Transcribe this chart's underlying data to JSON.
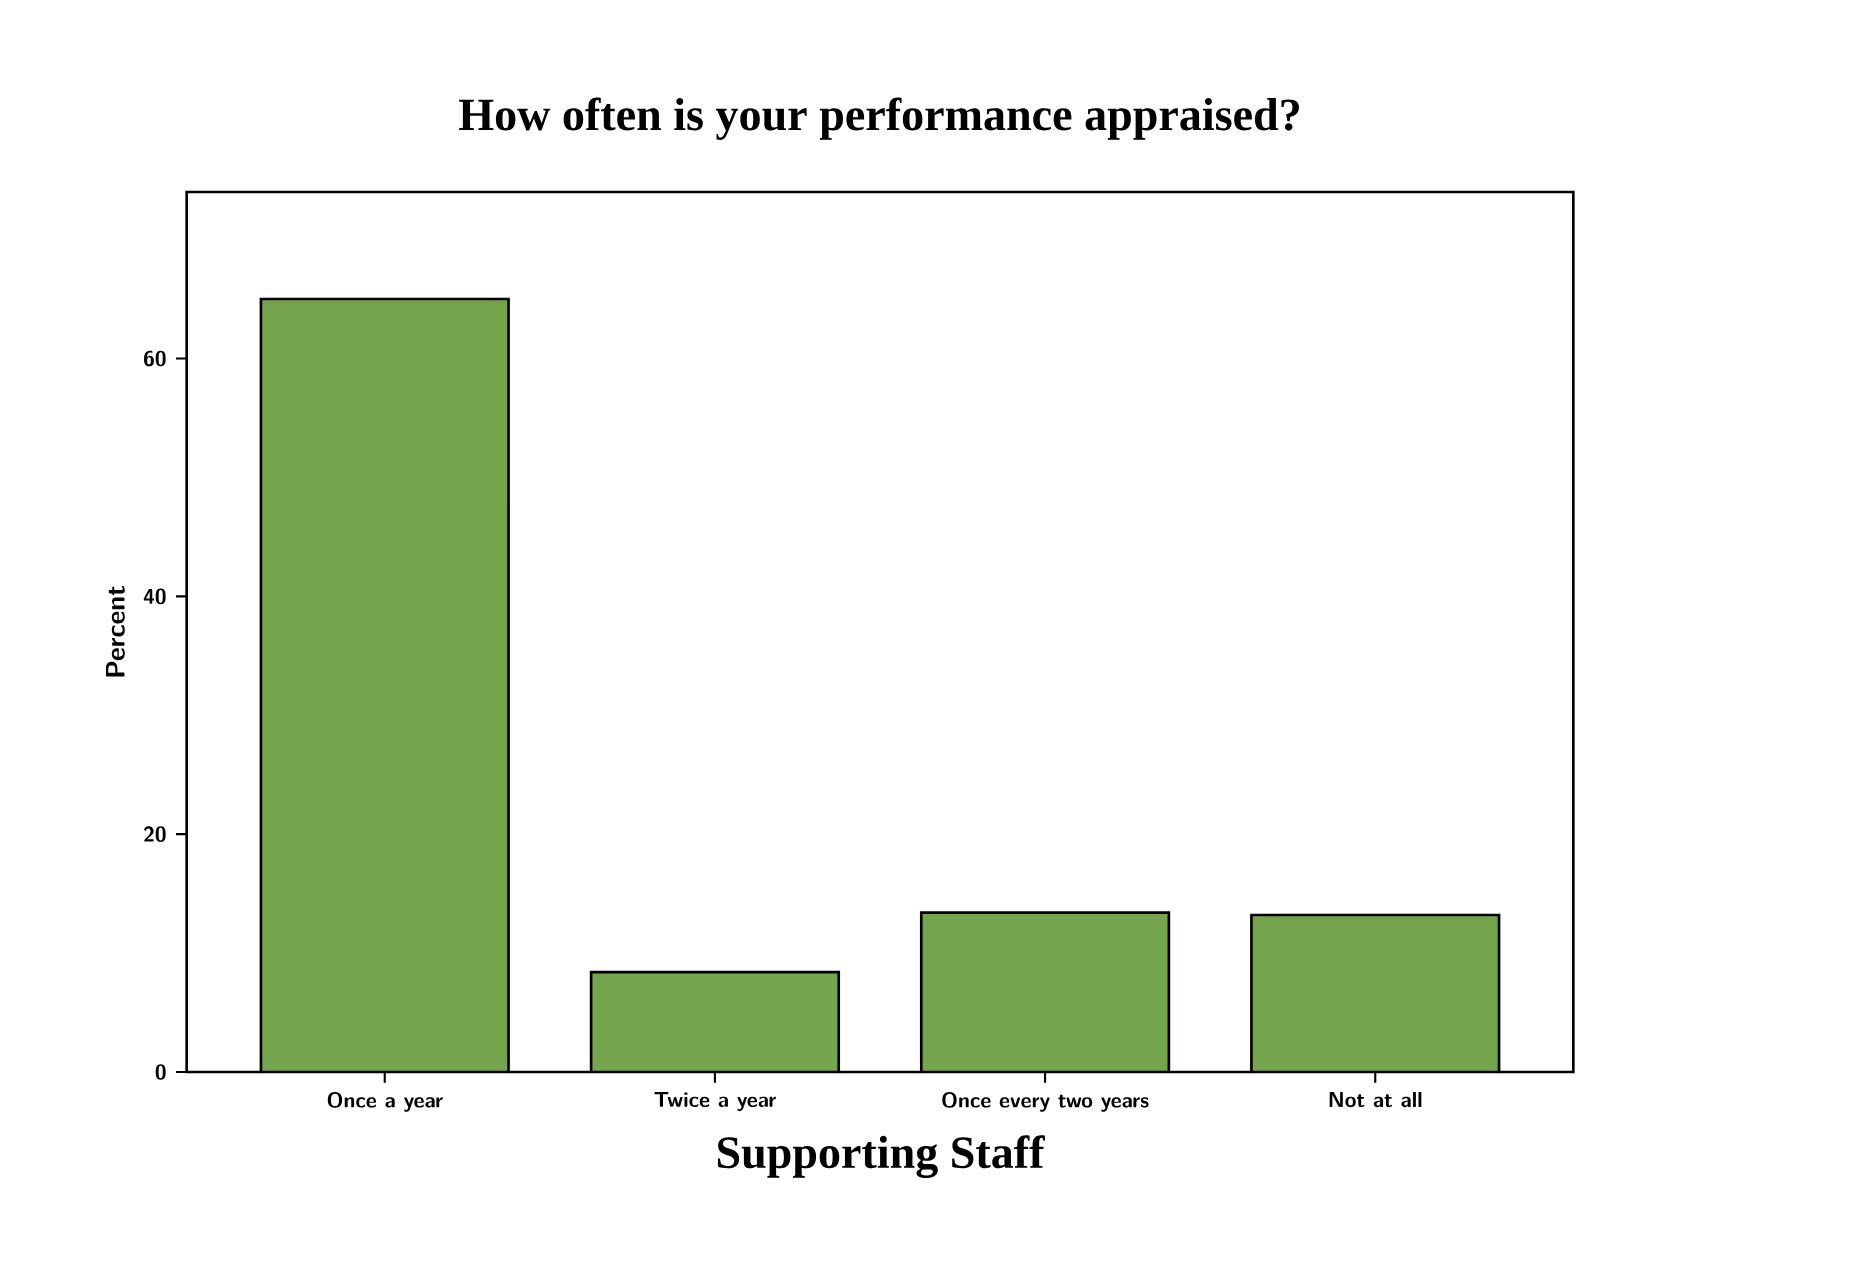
{
  "chart_data": {
    "type": "bar",
    "title": "How often is your performance appraised?",
    "xlabel": "Supporting Staff",
    "ylabel": "Percent",
    "categories": [
      "Once a year",
      "Twice a year",
      "Once every two years",
      "Not at all"
    ],
    "values": [
      65,
      8.4,
      13.4,
      13.2
    ],
    "color": "#74a44c",
    "ylim": [
      0,
      74
    ],
    "yticks": [
      0,
      20,
      40,
      60
    ],
    "grid": false
  }
}
